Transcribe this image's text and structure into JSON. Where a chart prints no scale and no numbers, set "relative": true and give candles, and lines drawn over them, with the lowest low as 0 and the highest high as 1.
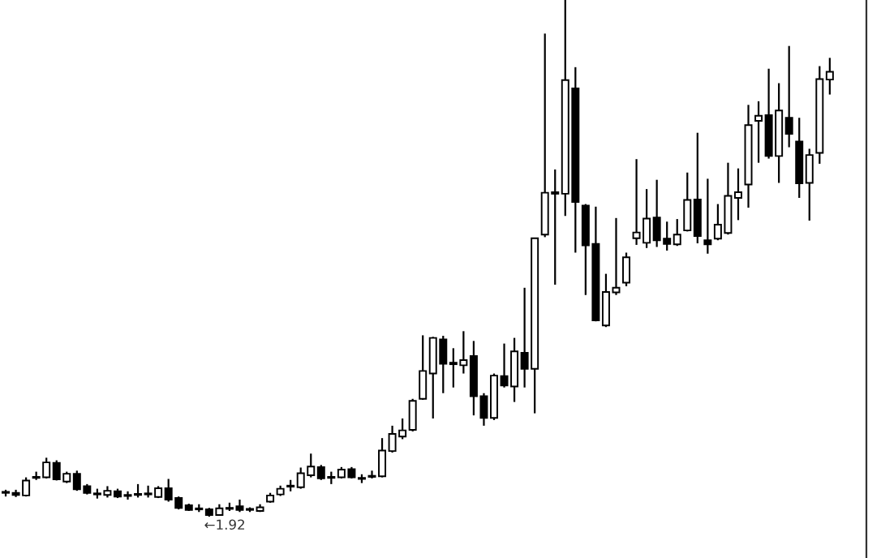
{
  "chart_data": {
    "type": "candlestick",
    "relative": true,
    "color": "#000000",
    "annotations": [
      "←1.92"
    ],
    "categories": [
      null,
      null,
      null,
      null,
      null,
      null,
      null,
      null,
      null,
      null,
      null,
      null,
      null,
      null,
      null,
      null,
      null,
      null,
      null,
      null,
      null,
      null,
      null,
      null,
      null,
      null,
      null,
      null,
      null,
      null,
      null,
      null,
      null,
      null,
      null,
      null,
      null,
      null,
      null,
      null,
      null,
      null,
      null,
      null,
      null,
      null,
      null,
      null,
      null,
      null,
      null,
      null,
      null,
      null,
      null,
      null,
      null,
      null,
      null,
      null,
      null,
      null,
      null,
      null,
      null,
      null,
      null,
      null,
      null,
      null,
      null,
      null,
      null,
      null,
      null,
      null,
      null,
      null,
      null,
      null,
      null,
      null
    ],
    "ohlc": [
      [
        0.046,
        0.052,
        0.039,
        0.046
      ],
      [
        0.046,
        0.052,
        0.038,
        0.042
      ],
      [
        0.041,
        0.076,
        0.039,
        0.07
      ],
      [
        0.075,
        0.087,
        0.071,
        0.077
      ],
      [
        0.076,
        0.114,
        0.074,
        0.105
      ],
      [
        0.104,
        0.109,
        0.07,
        0.072
      ],
      [
        0.068,
        0.087,
        0.065,
        0.083
      ],
      [
        0.083,
        0.089,
        0.05,
        0.053
      ],
      [
        0.059,
        0.063,
        0.043,
        0.046
      ],
      [
        0.045,
        0.054,
        0.035,
        0.043
      ],
      [
        0.042,
        0.059,
        0.037,
        0.05
      ],
      [
        0.049,
        0.054,
        0.036,
        0.039
      ],
      [
        0.041,
        0.049,
        0.033,
        0.04
      ],
      [
        0.042,
        0.063,
        0.037,
        0.042
      ],
      [
        0.043,
        0.06,
        0.037,
        0.043
      ],
      [
        0.038,
        0.059,
        0.036,
        0.055
      ],
      [
        0.055,
        0.073,
        0.029,
        0.033
      ],
      [
        0.036,
        0.039,
        0.014,
        0.017
      ],
      [
        0.022,
        0.025,
        0.011,
        0.013
      ],
      [
        0.015,
        0.024,
        0.009,
        0.014
      ],
      [
        0.014,
        0.017,
        0,
        0.003
      ],
      [
        0.003,
        0.024,
        0.002,
        0.016
      ],
      [
        0.016,
        0.027,
        0.011,
        0.015
      ],
      [
        0.02,
        0.033,
        0.009,
        0.013
      ],
      [
        0.014,
        0.018,
        0.009,
        0.013
      ],
      [
        0.011,
        0.024,
        0.009,
        0.018
      ],
      [
        0.029,
        0.046,
        0.027,
        0.041
      ],
      [
        0.043,
        0.06,
        0.04,
        0.054
      ],
      [
        0.059,
        0.071,
        0.049,
        0.058
      ],
      [
        0.057,
        0.095,
        0.054,
        0.084
      ],
      [
        0.08,
        0.122,
        0.076,
        0.097
      ],
      [
        0.096,
        0.1,
        0.071,
        0.074
      ],
      [
        0.076,
        0.087,
        0.063,
        0.075
      ],
      [
        0.076,
        0.096,
        0.074,
        0.091
      ],
      [
        0.092,
        0.096,
        0.074,
        0.076
      ],
      [
        0.074,
        0.082,
        0.065,
        0.073
      ],
      [
        0.077,
        0.089,
        0.074,
        0.079
      ],
      [
        0.078,
        0.152,
        0.076,
        0.128
      ],
      [
        0.127,
        0.176,
        0.124,
        0.16
      ],
      [
        0.155,
        0.19,
        0.15,
        0.167
      ],
      [
        0.168,
        0.228,
        0.165,
        0.224
      ],
      [
        0.228,
        0.351,
        0.226,
        0.282
      ],
      [
        0.277,
        0.348,
        0.19,
        0.346
      ],
      [
        0.343,
        0.35,
        0.239,
        0.296
      ],
      [
        0.298,
        0.326,
        0.25,
        0.295
      ],
      [
        0.293,
        0.359,
        0.277,
        0.303
      ],
      [
        0.311,
        0.34,
        0.196,
        0.233
      ],
      [
        0.233,
        0.239,
        0.176,
        0.191
      ],
      [
        0.191,
        0.277,
        0.187,
        0.273
      ],
      [
        0.272,
        0.335,
        0.25,
        0.254
      ],
      [
        0.252,
        0.346,
        0.222,
        0.32
      ],
      [
        0.317,
        0.443,
        0.25,
        0.286
      ],
      [
        0.286,
        0.539,
        0.2,
        0.539
      ],
      [
        0.546,
        0.935,
        0.541,
        0.627
      ],
      [
        0.628,
        0.672,
        0.449,
        0.625
      ],
      [
        0.625,
        1,
        0.582,
        0.845
      ],
      [
        0.829,
        0.87,
        0.511,
        0.609
      ],
      [
        0.602,
        0.605,
        0.429,
        0.525
      ],
      [
        0.528,
        0.6,
        0.378,
        0.38
      ],
      [
        0.37,
        0.47,
        0.367,
        0.435
      ],
      [
        0.434,
        0.578,
        0.429,
        0.443
      ],
      [
        0.453,
        0.511,
        0.446,
        0.502
      ],
      [
        0.539,
        0.692,
        0.526,
        0.55
      ],
      [
        0.53,
        0.634,
        0.52,
        0.577
      ],
      [
        0.579,
        0.652,
        0.522,
        0.535
      ],
      [
        0.538,
        0.571,
        0.515,
        0.528
      ],
      [
        0.527,
        0.576,
        0.524,
        0.546
      ],
      [
        0.554,
        0.666,
        0.552,
        0.613
      ],
      [
        0.614,
        0.743,
        0.529,
        0.543
      ],
      [
        0.535,
        0.654,
        0.509,
        0.527
      ],
      [
        0.538,
        0.605,
        0.535,
        0.565
      ],
      [
        0.549,
        0.685,
        0.546,
        0.621
      ],
      [
        0.617,
        0.674,
        0.574,
        0.628
      ],
      [
        0.643,
        0.797,
        0.598,
        0.758
      ],
      [
        0.766,
        0.804,
        0.685,
        0.776
      ],
      [
        0.777,
        0.867,
        0.693,
        0.698
      ],
      [
        0.698,
        0.839,
        0.646,
        0.786
      ],
      [
        0.772,
        0.911,
        0.715,
        0.741
      ],
      [
        0.726,
        0.772,
        0.617,
        0.645
      ],
      [
        0.646,
        0.712,
        0.573,
        0.7
      ],
      [
        0.704,
        0.872,
        0.683,
        0.847
      ],
      [
        0.846,
        0.888,
        0.817,
        0.861
      ]
    ]
  }
}
